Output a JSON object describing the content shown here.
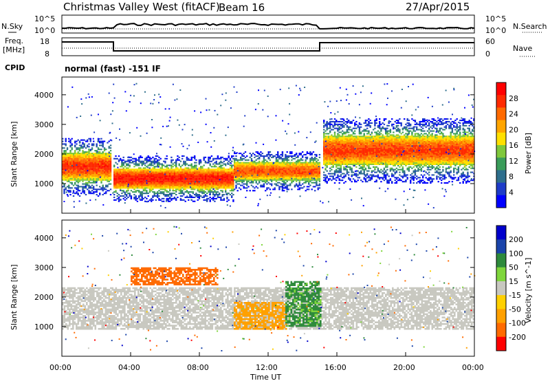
{
  "header": {
    "station": "Christmas Valley West (fitACF)",
    "beam": "Beam 16",
    "date": "27/Apr/2015"
  },
  "left_labels": {
    "nsky": "N.Sky",
    "freq": "Freq.",
    "mhz": "[MHz]",
    "cpid": "CPID"
  },
  "right_labels": {
    "nsearch": "N.Search",
    "nave": "Nave"
  },
  "cpid_text": "normal (fast) -151 IF",
  "noise_axis": {
    "top": "10^5",
    "bottom": "10^0",
    "right_top": "10^5",
    "right_bottom": "10^0"
  },
  "freq_axis": {
    "top": "18",
    "bottom": "8",
    "right_top": "60",
    "right_bottom": "0"
  },
  "colors": {
    "power": [
      "#0000ff",
      "#1e3cc8",
      "#2e6e8c",
      "#3a9c5a",
      "#7fc83c",
      "#ffe000",
      "#ffa500",
      "#ff6a00",
      "#ff2a00",
      "#ff0000"
    ],
    "velocity": [
      "#0000cc",
      "#1a44aa",
      "#2e8a3c",
      "#7fd63c",
      "#c8c8c0",
      "#ffd000",
      "#ffa000",
      "#ff6a00",
      "#ff0000"
    ]
  },
  "chart_data": [
    {
      "type": "heatmap",
      "title": "",
      "xlabel": "Time UT",
      "ylabel": "Slant Range [km]",
      "x_ticks": [
        "00:00",
        "04:00",
        "08:00",
        "12:00",
        "16:00",
        "20:00",
        "00:00"
      ],
      "y_ticks": [
        1000,
        2000,
        3000,
        4000
      ],
      "ylim": [
        0,
        4600
      ],
      "colorbar": {
        "label": "Power [dB]",
        "ticks": [
          4,
          8,
          12,
          16,
          20,
          24,
          28
        ],
        "range": [
          0,
          30
        ]
      },
      "bands": [
        {
          "t0": 0,
          "t1": 2.8,
          "r_center": 1550,
          "r_halfwidth": 450,
          "peak_db": 26
        },
        {
          "t0": 3.0,
          "t1": 10,
          "r_center": 1150,
          "r_halfwidth": 350,
          "peak_db": 27
        },
        {
          "t0": 10,
          "t1": 15,
          "r_center": 1400,
          "r_halfwidth": 300,
          "peak_db": 24
        },
        {
          "t0": 15.2,
          "t1": 24,
          "r_center": 2100,
          "r_halfwidth": 500,
          "peak_db": 25
        }
      ]
    },
    {
      "type": "heatmap",
      "title": "",
      "xlabel": "Time UT",
      "ylabel": "Slant Range [km]",
      "x_ticks": [
        "00:00",
        "04:00",
        "08:00",
        "12:00",
        "16:00",
        "20:00",
        "00:00"
      ],
      "y_ticks": [
        1000,
        2000,
        3000,
        4000
      ],
      "ylim": [
        0,
        4600
      ],
      "colorbar": {
        "label": "Velocity [m s^-1]",
        "ticks": [
          200,
          100,
          50,
          15,
          -15,
          -50,
          -100,
          -200
        ],
        "range": [
          -250,
          250
        ]
      },
      "regions": [
        {
          "t0": 0,
          "t1": 24,
          "r0": 900,
          "r1": 2300,
          "velocity": 0
        },
        {
          "t0": 10,
          "t1": 13,
          "r0": 900,
          "r1": 1800,
          "velocity": -80
        },
        {
          "t0": 4,
          "t1": 9,
          "r0": 2400,
          "r1": 3000,
          "velocity": -180
        },
        {
          "t0": 13,
          "t1": 15,
          "r0": 1000,
          "r1": 2500,
          "velocity": 60
        }
      ]
    }
  ]
}
